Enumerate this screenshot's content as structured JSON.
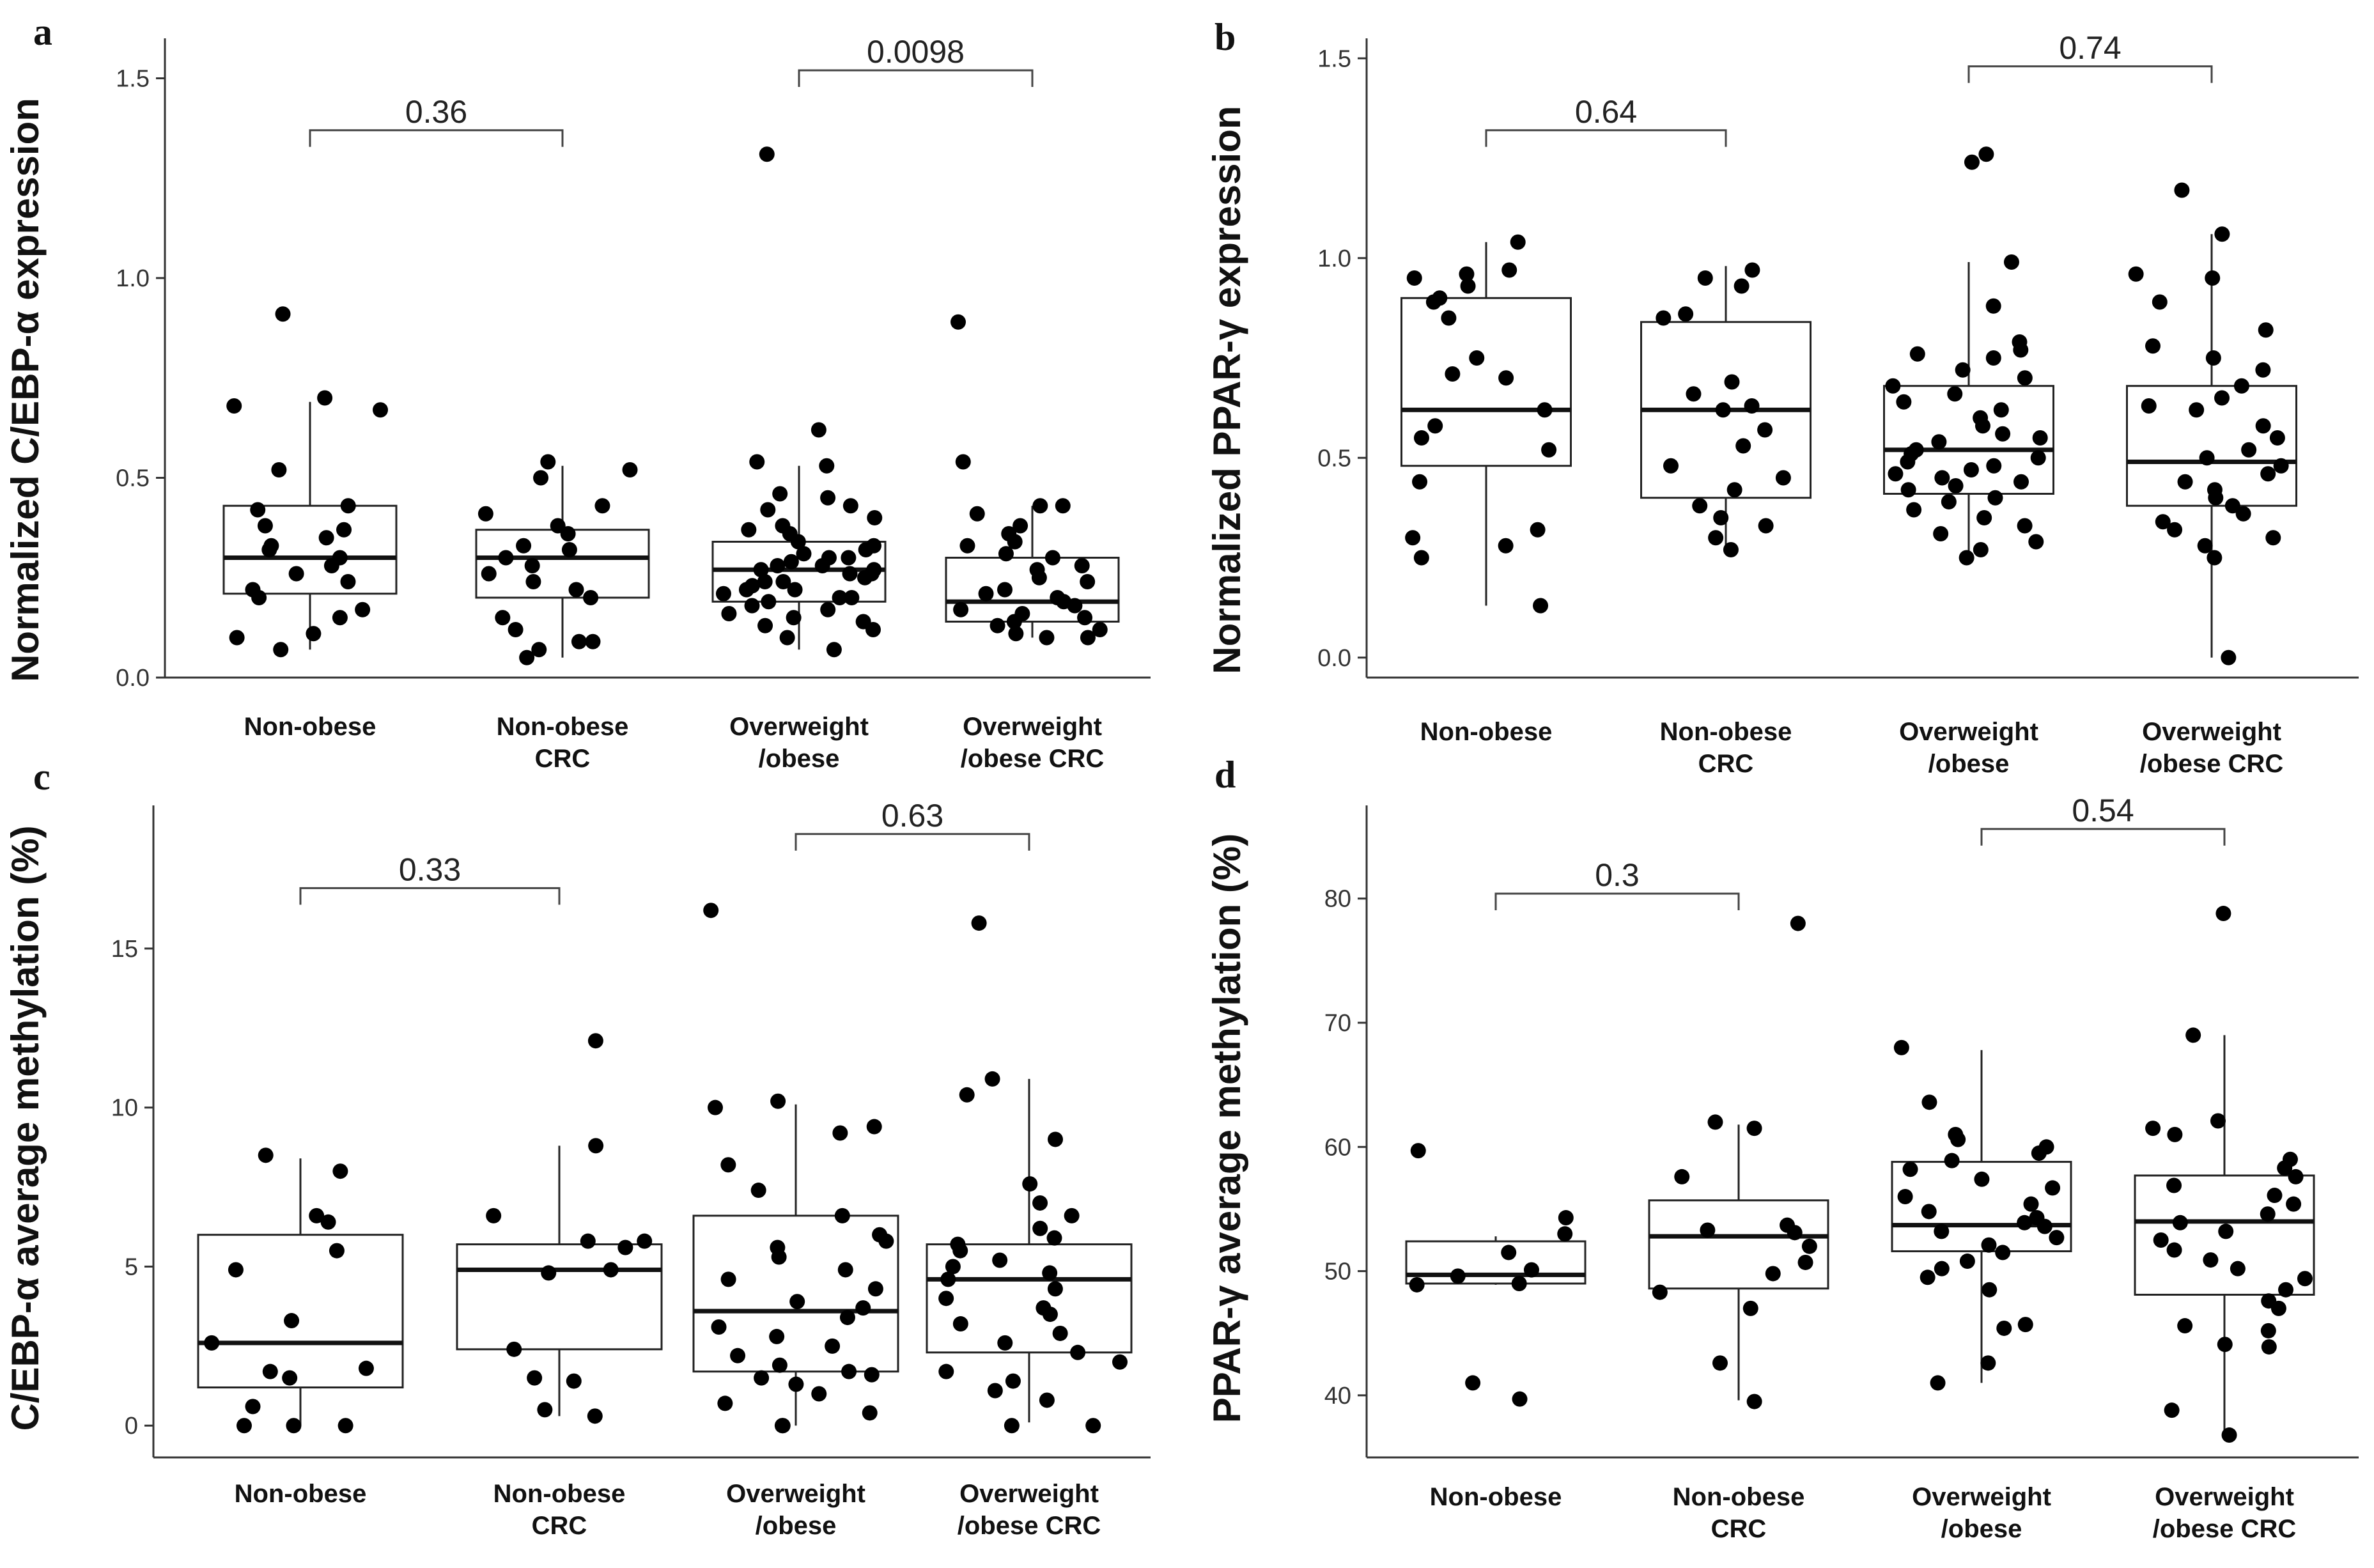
{
  "chart_data": [
    {
      "panel": "a",
      "type": "boxplot",
      "ylabel": "Normalized C/EBP-α expression",
      "ylim": [
        0,
        1.6
      ],
      "yticks": [
        0.0,
        0.5,
        1.0,
        1.5
      ],
      "ytick_labels": [
        "0.0",
        "0.5",
        "1.0",
        "1.5"
      ],
      "categories": [
        [
          "Non-obese"
        ],
        [
          "Non-obese",
          "CRC"
        ],
        [
          "Overweight",
          "/obese"
        ],
        [
          "Overweight",
          "/obese CRC"
        ]
      ],
      "boxes": [
        {
          "q1": 0.21,
          "median": 0.3,
          "q3": 0.43,
          "low": 0.07,
          "high": 0.69
        },
        {
          "q1": 0.2,
          "median": 0.3,
          "q3": 0.37,
          "low": 0.05,
          "high": 0.53
        },
        {
          "q1": 0.19,
          "median": 0.27,
          "q3": 0.34,
          "low": 0.07,
          "high": 0.53
        },
        {
          "q1": 0.14,
          "median": 0.19,
          "q3": 0.3,
          "low": 0.1,
          "high": 0.43
        }
      ],
      "points": [
        [
          0.91,
          0.7,
          0.68,
          0.67,
          0.52,
          0.43,
          0.42,
          0.38,
          0.37,
          0.35,
          0.33,
          0.32,
          0.3,
          0.28,
          0.26,
          0.24,
          0.22,
          0.2,
          0.17,
          0.15,
          0.11,
          0.1,
          0.07
        ],
        [
          0.54,
          0.52,
          0.5,
          0.43,
          0.41,
          0.38,
          0.36,
          0.33,
          0.32,
          0.3,
          0.28,
          0.26,
          0.24,
          0.22,
          0.2,
          0.15,
          0.12,
          0.09,
          0.09,
          0.07,
          0.05
        ],
        [
          1.31,
          0.62,
          0.54,
          0.53,
          0.46,
          0.45,
          0.43,
          0.42,
          0.4,
          0.38,
          0.37,
          0.36,
          0.34,
          0.33,
          0.32,
          0.31,
          0.3,
          0.3,
          0.29,
          0.28,
          0.28,
          0.27,
          0.27,
          0.26,
          0.26,
          0.25,
          0.24,
          0.24,
          0.23,
          0.22,
          0.22,
          0.21,
          0.2,
          0.2,
          0.19,
          0.18,
          0.17,
          0.16,
          0.15,
          0.14,
          0.13,
          0.12,
          0.1,
          0.07
        ],
        [
          0.89,
          0.54,
          0.43,
          0.43,
          0.41,
          0.38,
          0.36,
          0.34,
          0.33,
          0.31,
          0.3,
          0.28,
          0.27,
          0.25,
          0.24,
          0.22,
          0.21,
          0.2,
          0.19,
          0.18,
          0.17,
          0.16,
          0.15,
          0.14,
          0.13,
          0.12,
          0.11,
          0.1,
          0.1
        ]
      ],
      "comparisons": [
        {
          "from": 0,
          "to": 1,
          "y": 1.37,
          "label": "0.36"
        },
        {
          "from": 2,
          "to": 3,
          "y": 1.52,
          "label": "0.0098"
        }
      ]
    },
    {
      "panel": "b",
      "type": "boxplot",
      "ylabel": "Normalized PPAR-γ expression",
      "ylim": [
        -0.05,
        1.55
      ],
      "yticks": [
        0.0,
        0.5,
        1.0,
        1.5
      ],
      "ytick_labels": [
        "0.0",
        "0.5",
        "1.0",
        "1.5"
      ],
      "categories": [
        [
          "Non-obese"
        ],
        [
          "Non-obese",
          "CRC"
        ],
        [
          "Overweight",
          "/obese"
        ],
        [
          "Overweight",
          "/obese CRC"
        ]
      ],
      "boxes": [
        {
          "q1": 0.48,
          "median": 0.62,
          "q3": 0.9,
          "low": 0.13,
          "high": 1.04
        },
        {
          "q1": 0.4,
          "median": 0.62,
          "q3": 0.84,
          "low": 0.27,
          "high": 0.98
        },
        {
          "q1": 0.41,
          "median": 0.52,
          "q3": 0.68,
          "low": 0.25,
          "high": 0.99
        },
        {
          "q1": 0.38,
          "median": 0.49,
          "q3": 0.68,
          "low": 0.0,
          "high": 1.06
        }
      ],
      "points": [
        [
          1.04,
          0.97,
          0.96,
          0.95,
          0.93,
          0.9,
          0.89,
          0.85,
          0.75,
          0.71,
          0.7,
          0.62,
          0.58,
          0.55,
          0.52,
          0.44,
          0.32,
          0.3,
          0.28,
          0.25,
          0.13
        ],
        [
          0.97,
          0.95,
          0.93,
          0.86,
          0.85,
          0.69,
          0.66,
          0.63,
          0.62,
          0.57,
          0.53,
          0.48,
          0.45,
          0.42,
          0.38,
          0.35,
          0.33,
          0.3,
          0.27
        ],
        [
          1.26,
          1.24,
          0.99,
          0.88,
          0.79,
          0.77,
          0.76,
          0.75,
          0.72,
          0.7,
          0.68,
          0.66,
          0.64,
          0.62,
          0.6,
          0.58,
          0.56,
          0.55,
          0.54,
          0.52,
          0.51,
          0.5,
          0.49,
          0.48,
          0.47,
          0.46,
          0.45,
          0.44,
          0.43,
          0.42,
          0.4,
          0.39,
          0.37,
          0.35,
          0.33,
          0.31,
          0.29,
          0.27,
          0.25
        ],
        [
          1.17,
          1.06,
          0.96,
          0.95,
          0.89,
          0.82,
          0.78,
          0.75,
          0.72,
          0.68,
          0.65,
          0.63,
          0.62,
          0.58,
          0.55,
          0.52,
          0.5,
          0.48,
          0.46,
          0.44,
          0.42,
          0.4,
          0.38,
          0.36,
          0.34,
          0.32,
          0.3,
          0.28,
          0.25,
          0.0
        ]
      ],
      "comparisons": [
        {
          "from": 0,
          "to": 1,
          "y": 1.32,
          "label": "0.64"
        },
        {
          "from": 2,
          "to": 3,
          "y": 1.48,
          "label": "0.74"
        }
      ]
    },
    {
      "panel": "c",
      "type": "boxplot",
      "ylabel": "C/EBP-α average methylation (%)",
      "ylim": [
        -1,
        19.5
      ],
      "yticks": [
        0,
        5,
        10,
        15
      ],
      "ytick_labels": [
        "0",
        "5",
        "10",
        "15"
      ],
      "categories": [
        [
          "Non-obese"
        ],
        [
          "Non-obese",
          "CRC"
        ],
        [
          "Overweight",
          "/obese"
        ],
        [
          "Overweight",
          "/obese CRC"
        ]
      ],
      "boxes": [
        {
          "q1": 1.2,
          "median": 2.6,
          "q3": 6.0,
          "low": 0.0,
          "high": 8.4
        },
        {
          "q1": 2.4,
          "median": 4.9,
          "q3": 5.7,
          "low": 0.3,
          "high": 8.8
        },
        {
          "q1": 1.7,
          "median": 3.6,
          "q3": 6.6,
          "low": 0.0,
          "high": 10.1
        },
        {
          "q1": 2.3,
          "median": 4.6,
          "q3": 5.7,
          "low": 0.1,
          "high": 10.9
        }
      ],
      "points": [
        [
          8.5,
          8.0,
          6.6,
          6.4,
          5.5,
          4.9,
          3.3,
          2.6,
          1.8,
          1.7,
          1.5,
          0.6,
          0.0,
          0.0,
          0.0
        ],
        [
          12.1,
          8.8,
          6.6,
          5.8,
          5.8,
          5.6,
          4.9,
          4.8,
          2.4,
          1.5,
          1.4,
          0.5,
          0.3
        ],
        [
          16.2,
          10.2,
          10.0,
          9.4,
          9.2,
          8.2,
          7.4,
          6.6,
          6.0,
          5.8,
          5.6,
          5.3,
          4.9,
          4.6,
          4.3,
          3.9,
          3.7,
          3.4,
          3.1,
          2.8,
          2.5,
          2.2,
          1.9,
          1.7,
          1.6,
          1.5,
          1.3,
          1.0,
          0.7,
          0.4,
          0.0,
          0.0
        ],
        [
          15.8,
          10.9,
          10.4,
          9.0,
          7.6,
          7.0,
          6.6,
          6.2,
          5.9,
          5.7,
          5.5,
          5.2,
          5.0,
          4.8,
          4.6,
          4.3,
          4.0,
          3.7,
          3.5,
          3.2,
          2.9,
          2.6,
          2.3,
          2.0,
          1.7,
          1.4,
          1.1,
          0.8,
          0.0,
          0.0
        ]
      ],
      "comparisons": [
        {
          "from": 0,
          "to": 1,
          "y": 16.9,
          "label": "0.33"
        },
        {
          "from": 2,
          "to": 3,
          "y": 18.6,
          "label": "0.63"
        }
      ]
    },
    {
      "panel": "d",
      "type": "boxplot",
      "ylabel": "PPAR-γ average methylation (%)",
      "ylim": [
        35,
        87.5
      ],
      "yticks": [
        40,
        50,
        60,
        70,
        80
      ],
      "ytick_labels": [
        "40",
        "50",
        "60",
        "70",
        "80"
      ],
      "categories": [
        [
          "Non-obese"
        ],
        [
          "Non-obese",
          "CRC"
        ],
        [
          "Overweight",
          "/obese"
        ],
        [
          "Overweight",
          "/obese CRC"
        ]
      ],
      "boxes": [
        {
          "q1": 49.0,
          "median": 49.7,
          "q3": 52.4,
          "low": 48.9,
          "high": 52.8
        },
        {
          "q1": 48.6,
          "median": 52.8,
          "q3": 55.7,
          "low": 39.6,
          "high": 61.8
        },
        {
          "q1": 51.6,
          "median": 53.7,
          "q3": 58.8,
          "low": 41.0,
          "high": 67.8
        },
        {
          "q1": 48.1,
          "median": 54.0,
          "q3": 57.7,
          "low": 37.0,
          "high": 69.0
        }
      ],
      "points": [
        [
          59.7,
          54.3,
          53.0,
          51.5,
          50.1,
          49.6,
          49.0,
          48.9,
          41.0,
          39.7
        ],
        [
          78.0,
          62.0,
          61.5,
          57.6,
          53.7,
          53.3,
          53.1,
          52.0,
          50.7,
          49.8,
          48.3,
          47.0,
          42.6,
          39.5
        ],
        [
          68.0,
          63.6,
          61.0,
          60.6,
          60.0,
          59.5,
          58.9,
          58.2,
          57.4,
          56.7,
          56.0,
          55.4,
          54.8,
          54.3,
          53.9,
          53.6,
          53.2,
          52.7,
          52.1,
          51.5,
          50.8,
          50.2,
          49.5,
          48.5,
          45.7,
          45.4,
          42.6,
          41.0
        ],
        [
          78.8,
          69.0,
          62.1,
          61.5,
          61.0,
          59.0,
          58.3,
          57.6,
          56.9,
          56.1,
          55.4,
          54.6,
          53.9,
          53.2,
          52.5,
          51.7,
          50.9,
          50.2,
          49.4,
          48.5,
          47.6,
          47.0,
          45.6,
          45.2,
          44.1,
          43.9,
          38.8,
          36.8
        ]
      ],
      "comparisons": [
        {
          "from": 0,
          "to": 1,
          "y": 80.4,
          "label": "0.3"
        },
        {
          "from": 2,
          "to": 3,
          "y": 85.6,
          "label": "0.54"
        }
      ]
    }
  ]
}
